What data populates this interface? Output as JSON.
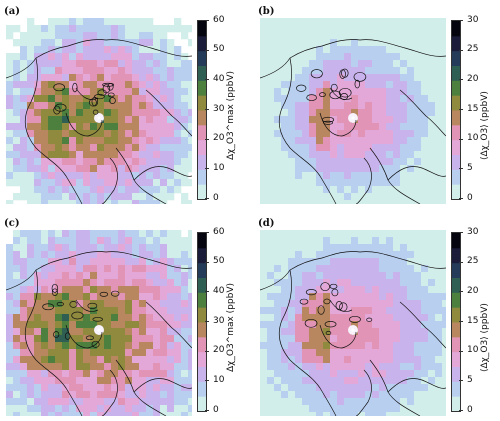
{
  "figure": {
    "panels": [
      {
        "label": "(a)",
        "colorbar_label": "Δχ_O3^max (ppbV)",
        "ticks": [
          "60",
          "50",
          "40",
          "30",
          "20",
          "10",
          "0"
        ],
        "vmax": 60,
        "style": "max",
        "spread": 0.85
      },
      {
        "label": "(b)",
        "colorbar_label": "⟨Δχ_O3⟩ (ppbV)",
        "ticks": [
          "30",
          "25",
          "20",
          "15",
          "10",
          "5",
          "0"
        ],
        "vmax": 30,
        "style": "mean",
        "spread": 0.7
      },
      {
        "label": "(c)",
        "colorbar_label": "Δχ_O3^max (ppbV)",
        "ticks": [
          "60",
          "50",
          "40",
          "30",
          "20",
          "10",
          "0"
        ],
        "vmax": 60,
        "style": "max",
        "spread": 1.0
      },
      {
        "label": "(d)",
        "colorbar_label": "⟨Δχ_O3⟩ (ppbV)",
        "ticks": [
          "30",
          "25",
          "20",
          "15",
          "10",
          "5",
          "0"
        ],
        "vmax": 30,
        "style": "mean",
        "spread": 0.85
      }
    ],
    "colormap": [
      "#d2eeea",
      "#b8cff0",
      "#c9b3ec",
      "#e3a8d8",
      "#e294b6",
      "#b9875f",
      "#8f8a3e",
      "#4d7f3e",
      "#2f5f52",
      "#243b5a",
      "#1b1b3a",
      "#050510"
    ]
  }
}
